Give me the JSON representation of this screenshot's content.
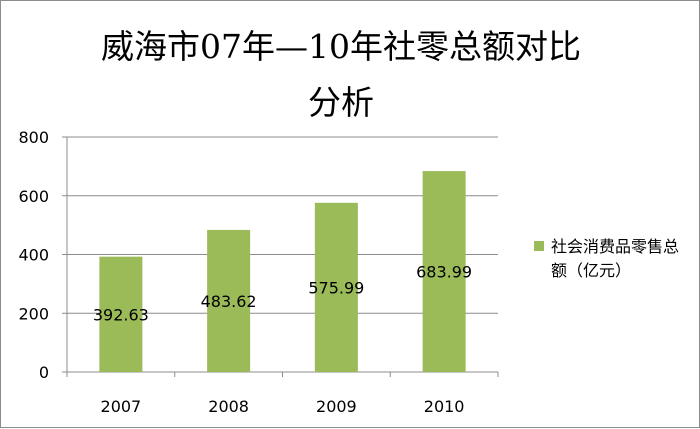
{
  "chart_data": {
    "type": "bar",
    "title": "威海市07年—10年社零总额对比",
    "title_line2": "分析",
    "categories": [
      "2007",
      "2008",
      "2009",
      "2010"
    ],
    "series": [
      {
        "name": "社会消费品零售总额（亿元）",
        "values": [
          392.63,
          483.62,
          575.99,
          683.99
        ],
        "labels": [
          "392.63",
          "483.62",
          "575.99",
          "683.99"
        ],
        "color": "#9BBB59"
      }
    ],
    "ylim": [
      0,
      800
    ],
    "yticks": [
      "0",
      "200",
      "400",
      "600",
      "800"
    ],
    "xlabel": "",
    "ylabel": "",
    "grid": "horizontal",
    "legend": "right"
  }
}
